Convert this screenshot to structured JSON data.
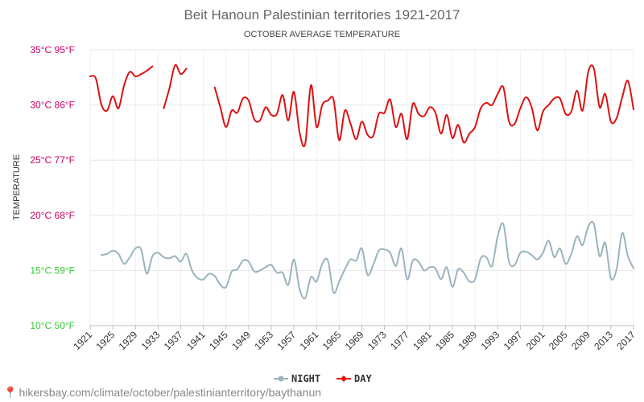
{
  "chart_data": {
    "type": "line",
    "title": "Beit Hanoun Palestinian territories 1921-2017",
    "subtitle": "OCTOBER AVERAGE TEMPERATURE",
    "ylabel": "TEMPERATURE",
    "ylim": [
      10,
      35
    ],
    "yticks": [
      {
        "value": 10,
        "label": "10°C 50°F",
        "color": "#33cc33"
      },
      {
        "value": 15,
        "label": "15°C 59°F",
        "color": "#33cc33"
      },
      {
        "value": 20,
        "label": "20°C 68°F",
        "color": "#cc0066"
      },
      {
        "value": 25,
        "label": "25°C 77°F",
        "color": "#cc0066"
      },
      {
        "value": 30,
        "label": "30°C 86°F",
        "color": "#cc0066"
      },
      {
        "value": 35,
        "label": "35°C 95°F",
        "color": "#cc0066"
      }
    ],
    "xlim": [
      1921,
      2017
    ],
    "xticks": [
      1921,
      1925,
      1929,
      1933,
      1937,
      1941,
      1945,
      1949,
      1953,
      1957,
      1961,
      1965,
      1969,
      1973,
      1977,
      1981,
      1985,
      1989,
      1993,
      1997,
      2001,
      2005,
      2009,
      2013,
      2017
    ],
    "legend_position": "bottom-center",
    "grid": true,
    "series": [
      {
        "name": "NIGHT",
        "color": "#9ab4bd",
        "points": [
          [
            1923,
            16.4
          ],
          [
            1924,
            16.5
          ],
          [
            1925,
            16.8
          ],
          [
            1926,
            16.5
          ],
          [
            1927,
            15.6
          ],
          [
            1928,
            16.2
          ],
          [
            1929,
            17.0
          ],
          [
            1930,
            16.9
          ],
          [
            1931,
            14.7
          ],
          [
            1932,
            16.3
          ],
          [
            1933,
            16.6
          ],
          [
            1934,
            16.2
          ],
          [
            1935,
            16.1
          ],
          [
            1936,
            16.3
          ],
          [
            1937,
            15.8
          ],
          [
            1938,
            16.5
          ],
          [
            1939,
            15.0
          ],
          [
            1940,
            14.3
          ],
          [
            1941,
            14.2
          ],
          [
            1942,
            14.7
          ],
          [
            1943,
            14.5
          ],
          [
            1944,
            13.7
          ],
          [
            1945,
            13.5
          ],
          [
            1946,
            14.9
          ],
          [
            1947,
            15.1
          ],
          [
            1948,
            15.9
          ],
          [
            1949,
            15.8
          ],
          [
            1950,
            14.9
          ],
          [
            1951,
            15.0
          ],
          [
            1952,
            15.3
          ],
          [
            1953,
            15.5
          ],
          [
            1954,
            14.8
          ],
          [
            1955,
            14.8
          ],
          [
            1956,
            13.7
          ],
          [
            1957,
            16.0
          ],
          [
            1958,
            13.3
          ],
          [
            1959,
            12.5
          ],
          [
            1960,
            14.4
          ],
          [
            1961,
            14.0
          ],
          [
            1962,
            15.6
          ],
          [
            1963,
            15.9
          ],
          [
            1964,
            13.0
          ],
          [
            1965,
            14.0
          ],
          [
            1966,
            15.1
          ],
          [
            1967,
            16.0
          ],
          [
            1968,
            15.9
          ],
          [
            1969,
            17.0
          ],
          [
            1970,
            14.6
          ],
          [
            1971,
            15.5
          ],
          [
            1972,
            16.8
          ],
          [
            1973,
            16.9
          ],
          [
            1974,
            16.6
          ],
          [
            1975,
            15.4
          ],
          [
            1976,
            17.0
          ],
          [
            1977,
            14.2
          ],
          [
            1978,
            15.9
          ],
          [
            1979,
            15.8
          ],
          [
            1980,
            15.0
          ],
          [
            1981,
            15.3
          ],
          [
            1982,
            15.2
          ],
          [
            1983,
            14.2
          ],
          [
            1984,
            15.3
          ],
          [
            1985,
            13.5
          ],
          [
            1986,
            15.1
          ],
          [
            1987,
            14.8
          ],
          [
            1988,
            14.0
          ],
          [
            1989,
            14.2
          ],
          [
            1990,
            16.1
          ],
          [
            1991,
            16.2
          ],
          [
            1992,
            15.4
          ],
          [
            1993,
            18.1
          ],
          [
            1994,
            19.2
          ],
          [
            1995,
            15.8
          ],
          [
            1996,
            15.5
          ],
          [
            1997,
            16.6
          ],
          [
            1998,
            16.7
          ],
          [
            1999,
            16.4
          ],
          [
            2000,
            16.0
          ],
          [
            2001,
            16.6
          ],
          [
            2002,
            17.7
          ],
          [
            2003,
            16.2
          ],
          [
            2004,
            17.0
          ],
          [
            2005,
            15.6
          ],
          [
            2006,
            16.5
          ],
          [
            2007,
            18.1
          ],
          [
            2008,
            17.3
          ],
          [
            2009,
            19.0
          ],
          [
            2010,
            19.2
          ],
          [
            2011,
            16.3
          ],
          [
            2012,
            17.5
          ],
          [
            2013,
            14.3
          ],
          [
            2014,
            15.1
          ],
          [
            2015,
            18.4
          ],
          [
            2016,
            16.3
          ],
          [
            2017,
            15.2
          ]
        ]
      },
      {
        "name": "DAY",
        "color": "#dd1111",
        "points": [
          [
            1921,
            32.6
          ],
          [
            1922,
            32.4
          ],
          [
            1923,
            30.0
          ],
          [
            1924,
            29.5
          ],
          [
            1925,
            30.8
          ],
          [
            1926,
            29.7
          ],
          [
            1927,
            31.8
          ],
          [
            1928,
            33.0
          ],
          [
            1929,
            32.6
          ],
          [
            1930,
            32.8
          ],
          [
            1931,
            33.1
          ],
          [
            1932,
            33.5
          ],
          [
            null,
            null
          ],
          [
            1934,
            29.7
          ],
          [
            1935,
            31.5
          ],
          [
            1936,
            33.6
          ],
          [
            1937,
            32.8
          ],
          [
            1938,
            33.3
          ],
          [
            null,
            null
          ],
          [
            1943,
            31.6
          ],
          [
            1944,
            29.8
          ],
          [
            1945,
            28.0
          ],
          [
            1946,
            29.5
          ],
          [
            1947,
            29.3
          ],
          [
            1948,
            30.6
          ],
          [
            1949,
            30.4
          ],
          [
            1950,
            28.7
          ],
          [
            1951,
            28.6
          ],
          [
            1952,
            29.8
          ],
          [
            1953,
            29.1
          ],
          [
            1954,
            29.2
          ],
          [
            1955,
            30.9
          ],
          [
            1956,
            28.6
          ],
          [
            1957,
            31.2
          ],
          [
            1958,
            27.5
          ],
          [
            1959,
            26.5
          ],
          [
            1960,
            31.8
          ],
          [
            1961,
            28.0
          ],
          [
            1962,
            30.0
          ],
          [
            1963,
            30.4
          ],
          [
            1964,
            30.5
          ],
          [
            1965,
            26.8
          ],
          [
            1966,
            29.5
          ],
          [
            1967,
            28.3
          ],
          [
            1968,
            26.9
          ],
          [
            1969,
            28.5
          ],
          [
            1970,
            27.3
          ],
          [
            1971,
            27.2
          ],
          [
            1972,
            29.2
          ],
          [
            1973,
            29.3
          ],
          [
            1974,
            30.5
          ],
          [
            1975,
            28.0
          ],
          [
            1976,
            29.2
          ],
          [
            1977,
            26.9
          ],
          [
            1978,
            30.1
          ],
          [
            1979,
            29.2
          ],
          [
            1980,
            29.0
          ],
          [
            1981,
            29.8
          ],
          [
            1982,
            29.3
          ],
          [
            1983,
            27.4
          ],
          [
            1984,
            29.1
          ],
          [
            1985,
            27.0
          ],
          [
            1986,
            28.2
          ],
          [
            1987,
            26.6
          ],
          [
            1988,
            27.4
          ],
          [
            1989,
            28.0
          ],
          [
            1990,
            29.7
          ],
          [
            1991,
            30.2
          ],
          [
            1992,
            30.0
          ],
          [
            1993,
            31.0
          ],
          [
            1994,
            31.6
          ],
          [
            1995,
            28.5
          ],
          [
            1996,
            28.3
          ],
          [
            1997,
            29.7
          ],
          [
            1998,
            30.7
          ],
          [
            1999,
            29.8
          ],
          [
            2000,
            27.7
          ],
          [
            2001,
            29.4
          ],
          [
            2002,
            30.0
          ],
          [
            2003,
            30.6
          ],
          [
            2004,
            30.6
          ],
          [
            2005,
            29.2
          ],
          [
            2006,
            29.4
          ],
          [
            2007,
            31.3
          ],
          [
            2008,
            29.5
          ],
          [
            2009,
            33.0
          ],
          [
            2010,
            33.3
          ],
          [
            2011,
            29.8
          ],
          [
            2012,
            31.0
          ],
          [
            2013,
            28.5
          ],
          [
            2014,
            28.8
          ],
          [
            2015,
            30.7
          ],
          [
            2016,
            32.2
          ],
          [
            2017,
            29.6
          ]
        ]
      }
    ]
  },
  "footer": {
    "url": "hikersbay.com/climate/october/palestinianterritory/baythanun"
  }
}
